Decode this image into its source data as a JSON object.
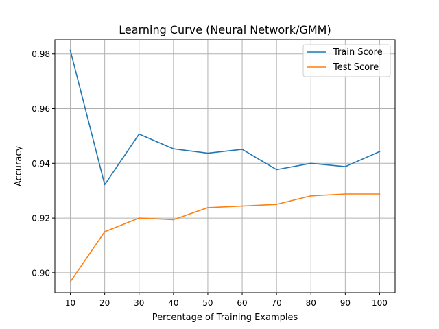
{
  "chart_data": {
    "type": "line",
    "title": "Learning Curve (Neural Network/GMM)",
    "xlabel": "Percentage of Training Examples",
    "ylabel": "Accuracy",
    "x": [
      10,
      20,
      30,
      40,
      50,
      60,
      70,
      80,
      90,
      100
    ],
    "xticks": [
      10,
      20,
      30,
      40,
      50,
      60,
      70,
      80,
      90,
      100
    ],
    "xtick_labels": [
      "10",
      "20",
      "30",
      "40",
      "50",
      "60",
      "70",
      "80",
      "90",
      "100"
    ],
    "yticks": [
      0.9,
      0.92,
      0.94,
      0.96,
      0.98
    ],
    "ytick_labels": [
      "0.90",
      "0.92",
      "0.94",
      "0.96",
      "0.98"
    ],
    "xlim": [
      5.5,
      104.5
    ],
    "ylim": [
      0.8927,
      0.9852
    ],
    "grid": true,
    "legend_position": "top-right",
    "series": [
      {
        "name": "Train Score",
        "color": "#1f77b4",
        "values": [
          0.9813,
          0.9322,
          0.9507,
          0.9453,
          0.9437,
          0.9451,
          0.9377,
          0.94,
          0.9388,
          0.9443
        ]
      },
      {
        "name": "Test Score",
        "color": "#ff7f0e",
        "values": [
          0.8967,
          0.915,
          0.92,
          0.9194,
          0.9238,
          0.9244,
          0.925,
          0.9281,
          0.9288,
          0.9288
        ]
      }
    ]
  }
}
